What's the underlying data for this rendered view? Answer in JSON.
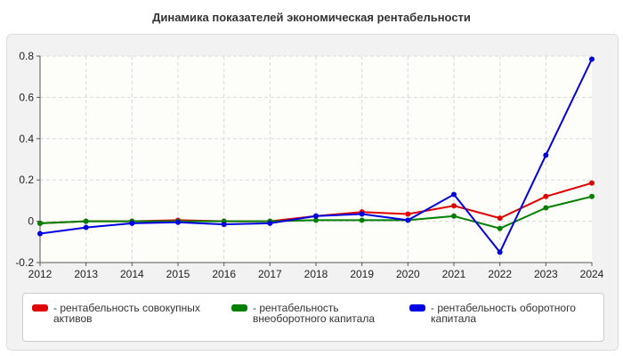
{
  "chart_data": {
    "type": "line",
    "title": "Динамика показателей экономическая рентабельности",
    "xlabel": "",
    "ylabel": "",
    "x": [
      2012,
      2013,
      2014,
      2015,
      2016,
      2017,
      2018,
      2019,
      2020,
      2021,
      2022,
      2023,
      2024
    ],
    "ylim": [
      -0.2,
      0.8
    ],
    "yticks": [
      "-0.2",
      "0",
      "0.2",
      "0.4",
      "0.6",
      "0.8"
    ],
    "grid": true,
    "legend_position": "bottom",
    "series": [
      {
        "name": "- рентабельность совокупных активов",
        "color": "#e00000",
        "values": [
          -0.01,
          0.0,
          0.0,
          0.005,
          0.0,
          0.0,
          0.025,
          0.045,
          0.035,
          0.075,
          0.015,
          0.12,
          0.185
        ]
      },
      {
        "name": "- рентабельность внеоборотного капитала",
        "color": "#008000",
        "values": [
          -0.01,
          0.0,
          0.0,
          0.0,
          0.0,
          0.0,
          0.005,
          0.005,
          0.005,
          0.025,
          -0.035,
          0.065,
          0.12
        ]
      },
      {
        "name": "- рентабельность оборотного капитала",
        "color": "#0000e0",
        "values": [
          -0.06,
          -0.03,
          -0.01,
          -0.005,
          -0.015,
          -0.01,
          0.025,
          0.035,
          0.005,
          0.13,
          -0.15,
          0.32,
          0.785
        ]
      }
    ]
  }
}
